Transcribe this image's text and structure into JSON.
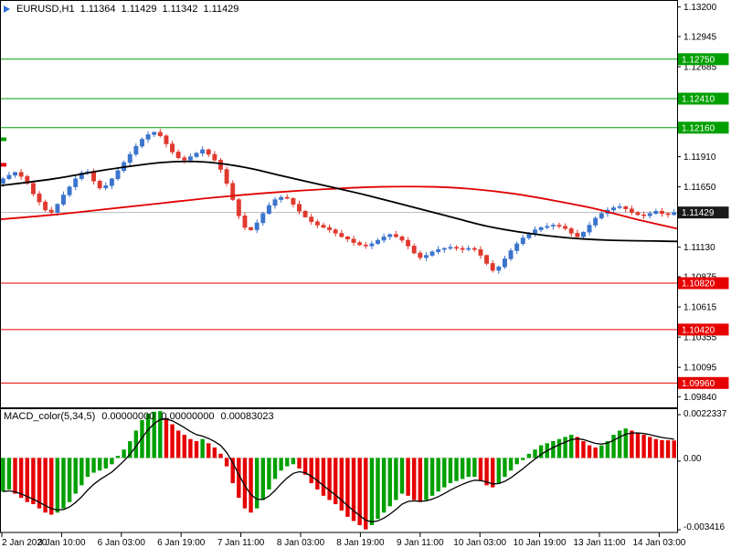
{
  "header": {
    "symbol_period": "EURUSD,H1",
    "open": "1.11364",
    "high": "1.11429",
    "low": "1.11342",
    "close": "1.11429"
  },
  "colors": {
    "background": "#FFFFFF",
    "marker_triangle": "#2F6FD6",
    "bull_candle": "#3B74CC",
    "bear_candle": "#E0392E",
    "resistance_line": "#00A000",
    "support_line": "#E60000",
    "ma_fast": "#000000",
    "ma_slow": "#E00000",
    "macd_up": "#00A000",
    "macd_down": "#E60000",
    "macd_signal": "#000000",
    "current_price_box": "#1A1A1A",
    "current_price_line": "#B8B8B8",
    "axis_text": "#000000"
  },
  "chart_data": [
    {
      "type": "candlestick",
      "symbol": "EURUSD",
      "timeframe": "H1",
      "x_labels": [
        "2 Jan 2020",
        "3 Jan 10:00",
        "6 Jan 03:00",
        "6 Jan 19:00",
        "7 Jan 11:00",
        "8 Jan 03:00",
        "8 Jan 19:00",
        "9 Jan 11:00",
        "10 Jan 03:00",
        "10 Jan 19:00",
        "13 Jan 11:00",
        "14 Jan 03:00"
      ],
      "visible_price_range": {
        "top": 1.1326,
        "bottom": 1.0975
      },
      "price_axis_ticks": [
        "1.13200",
        "1.12945",
        "1.12685",
        "1.11910",
        "1.11650",
        "1.11130",
        "1.10875",
        "1.10615",
        "1.10355",
        "1.10095",
        "1.09840"
      ],
      "resistance_levels": [
        "1.12750",
        "1.12410",
        "1.12160"
      ],
      "support_levels": [
        "1.10820",
        "1.10420",
        "1.09960"
      ],
      "current_price": "1.11429",
      "left_edge_marks": [
        {
          "color": "resistance",
          "price": 1.1206
        },
        {
          "color": "support",
          "price": 1.1184
        }
      ],
      "closes": [
        1.1172,
        1.1175,
        1.11775,
        1.1174,
        1.1168,
        1.1159,
        1.1152,
        1.1145,
        1.1143,
        1.115,
        1.1158,
        1.1165,
        1.1172,
        1.1177,
        1.1178,
        1.117,
        1.1164,
        1.1166,
        1.1172,
        1.1179,
        1.1186,
        1.1193,
        1.12,
        1.1206,
        1.121,
        1.1212,
        1.1209,
        1.1202,
        1.1195,
        1.119,
        1.1188,
        1.1191,
        1.1194,
        1.1197,
        1.1193,
        1.1188,
        1.118,
        1.1168,
        1.1154,
        1.114,
        1.113,
        1.1128,
        1.1134,
        1.1142,
        1.1149,
        1.1154,
        1.1156,
        1.1155,
        1.115,
        1.1144,
        1.1139,
        1.1135,
        1.1132,
        1.113,
        1.1128,
        1.1125,
        1.1122,
        1.112,
        1.1117,
        1.1115,
        1.1114,
        1.1116,
        1.1119,
        1.1122,
        1.1124,
        1.1122,
        1.1119,
        1.1114,
        1.1108,
        1.1104,
        1.1106,
        1.1109,
        1.1111,
        1.1112,
        1.1113,
        1.1112,
        1.1111,
        1.1112,
        1.1111,
        1.1106,
        1.1099,
        1.1093,
        1.1096,
        1.1103,
        1.111,
        1.1116,
        1.1121,
        1.1125,
        1.1128,
        1.113,
        1.1131,
        1.1132,
        1.1131,
        1.1129,
        1.1125,
        1.1122,
        1.1126,
        1.1132,
        1.1138,
        1.1142,
        1.1145,
        1.1147,
        1.1148,
        1.1146,
        1.1143,
        1.1141,
        1.114,
        1.1142,
        1.1144,
        1.1142,
        1.1141,
        1.11429
      ],
      "ma_black": [
        [
          0.0,
          1.1166
        ],
        [
          0.08,
          1.1172
        ],
        [
          0.16,
          1.118
        ],
        [
          0.24,
          1.1186
        ],
        [
          0.3,
          1.11865
        ],
        [
          0.36,
          1.1182
        ],
        [
          0.42,
          1.1174
        ],
        [
          0.48,
          1.1166
        ],
        [
          0.54,
          1.1158
        ],
        [
          0.6,
          1.1149
        ],
        [
          0.66,
          1.114
        ],
        [
          0.72,
          1.1131
        ],
        [
          0.78,
          1.1125
        ],
        [
          0.84,
          1.1121
        ],
        [
          0.9,
          1.1119
        ],
        [
          1.0,
          1.1118
        ]
      ],
      "ma_red": [
        [
          0.0,
          1.1137
        ],
        [
          0.08,
          1.1141
        ],
        [
          0.16,
          1.1146
        ],
        [
          0.24,
          1.1151
        ],
        [
          0.32,
          1.1156
        ],
        [
          0.4,
          1.116
        ],
        [
          0.48,
          1.1163
        ],
        [
          0.56,
          1.1165
        ],
        [
          0.64,
          1.1165
        ],
        [
          0.7,
          1.1163
        ],
        [
          0.76,
          1.1159
        ],
        [
          0.82,
          1.1153
        ],
        [
          0.88,
          1.1146
        ],
        [
          0.94,
          1.1137
        ],
        [
          1.0,
          1.1129
        ]
      ]
    },
    {
      "type": "bar",
      "indicator": "MACD_color(5,34,5)",
      "values_text": [
        "0.00000000",
        "0.00000000",
        "0.00083023"
      ],
      "axis_labels": {
        "max": "0.0022337",
        "zero": "0.00",
        "min": "-0.003416"
      },
      "axis_range": {
        "max": 0.0022337,
        "min": -0.003416
      },
      "signal_period": 5,
      "histogram": [
        -0.0016,
        -0.0015,
        -0.0017,
        -0.0019,
        -0.0021,
        -0.0022,
        -0.0024,
        -0.0026,
        -0.0027,
        -0.0026,
        -0.0024,
        -0.0021,
        -0.0017,
        -0.0013,
        -0.0009,
        -0.0007,
        -0.0006,
        -0.0005,
        -0.0003,
        0.0001,
        0.0004,
        0.0008,
        0.0013,
        0.0018,
        0.0021,
        0.0022,
        0.00223,
        0.0019,
        0.0016,
        0.0013,
        0.0011,
        0.0009,
        0.0008,
        0.0009,
        0.0007,
        0.0005,
        0.0002,
        -0.0004,
        -0.0012,
        -0.0019,
        -0.0024,
        -0.0026,
        -0.0024,
        -0.002,
        -0.0015,
        -0.001,
        -0.0006,
        -0.0004,
        -0.0003,
        -0.0005,
        -0.0008,
        -0.0012,
        -0.0015,
        -0.0018,
        -0.002,
        -0.0022,
        -0.0025,
        -0.0028,
        -0.003,
        -0.0032,
        -0.0034,
        -0.0032,
        -0.0029,
        -0.0026,
        -0.0023,
        -0.002,
        -0.0017,
        -0.0018,
        -0.002,
        -0.0021,
        -0.002,
        -0.0018,
        -0.0016,
        -0.0014,
        -0.0012,
        -0.0011,
        -0.001,
        -0.0009,
        -0.0009,
        -0.0011,
        -0.0013,
        -0.0014,
        -0.0012,
        -0.0009,
        -0.0006,
        -0.0003,
        -0.0001,
        0.0002,
        0.0004,
        0.0006,
        0.0007,
        0.0008,
        0.0009,
        0.001,
        0.0011,
        0.001,
        0.0008,
        0.0006,
        0.0005,
        0.0006,
        0.0008,
        0.0011,
        0.0013,
        0.0014,
        0.0013,
        0.0012,
        0.0011,
        0.001,
        0.0009,
        0.00085,
        0.00084,
        0.00083
      ]
    }
  ]
}
